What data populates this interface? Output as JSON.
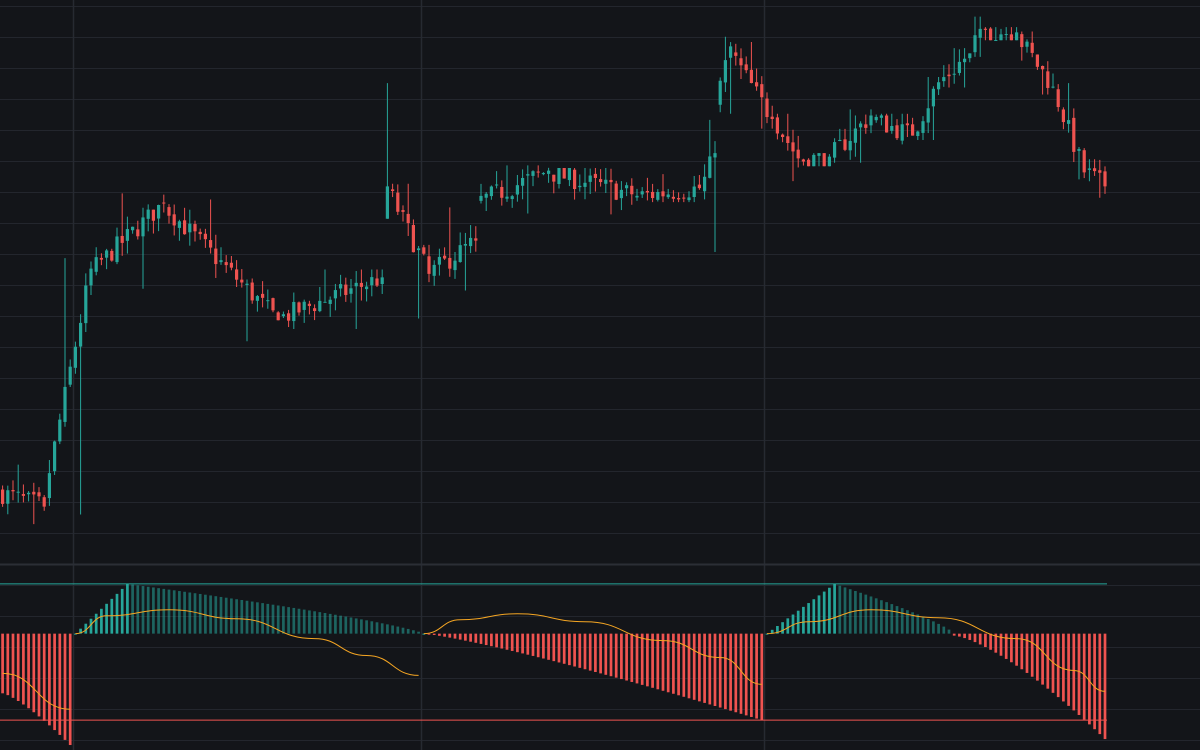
{
  "theme": {
    "background": "#131519",
    "grid": "#23262d",
    "pane_separator": "#2b2e35",
    "period_divider": "#262a31",
    "up_color": "#26a69a",
    "down_color": "#ef5350",
    "signal_color": "#f5a623"
  },
  "chart_data": [
    {
      "type": "candlestick",
      "pane": "price",
      "axes_labels_visible": false,
      "grid": true,
      "y_range": [
        26,
        90
      ],
      "segments": [
        {
          "start": 0,
          "end": 9,
          "open": 33.8,
          "close": 32.1,
          "high": 36.9,
          "low": 30.1
        },
        {
          "start": 9,
          "end": 18,
          "open": 33.2,
          "close": 59.3,
          "high": 60.5,
          "low": 31.2
        },
        {
          "start": 18,
          "end": 32,
          "open": 59.0,
          "close": 66.8,
          "high": 67.9,
          "low": 57.0
        },
        {
          "start": 32,
          "end": 54,
          "open": 66.5,
          "close": 53.4,
          "high": 67.2,
          "low": 51.0
        },
        {
          "start": 54,
          "end": 74,
          "open": 53.6,
          "close": 58.3,
          "high": 59.2,
          "low": 52.4
        },
        {
          "start": 74,
          "end": 75,
          "open": 59.0,
          "close": 68.7,
          "high": 80.5,
          "low": 65.0
        },
        {
          "start": 75,
          "end": 83,
          "open": 68.5,
          "close": 58.7,
          "high": 69.0,
          "low": 53.6
        },
        {
          "start": 83,
          "end": 92,
          "open": 58.7,
          "close": 62.5,
          "high": 66.3,
          "low": 56.8
        },
        {
          "start": 92,
          "end": 106,
          "open": 66.8,
          "close": 70.5,
          "high": 71.1,
          "low": 65.6
        },
        {
          "start": 106,
          "end": 122,
          "open": 70.3,
          "close": 67.8,
          "high": 70.8,
          "low": 65.5
        },
        {
          "start": 122,
          "end": 135,
          "open": 67.5,
          "close": 68.5,
          "high": 70.1,
          "low": 66.9
        },
        {
          "start": 135,
          "end": 138,
          "open": 68.0,
          "close": 72.5,
          "high": 76.3,
          "low": 61.2
        },
        {
          "start": 138,
          "end": 141,
          "open": 78.0,
          "close": 84.7,
          "high": 85.8,
          "low": 77.0
        },
        {
          "start": 141,
          "end": 149,
          "open": 84.0,
          "close": 76.4,
          "high": 85.2,
          "low": 75.3
        },
        {
          "start": 149,
          "end": 154,
          "open": 76.7,
          "close": 71.9,
          "high": 77.0,
          "low": 69.3
        },
        {
          "start": 154,
          "end": 160,
          "open": 71.7,
          "close": 72.1,
          "high": 72.5,
          "low": 71.0
        },
        {
          "start": 160,
          "end": 168,
          "open": 72.0,
          "close": 76.8,
          "high": 77.5,
          "low": 71.4
        },
        {
          "start": 168,
          "end": 176,
          "open": 76.5,
          "close": 74.5,
          "high": 77.0,
          "low": 73.5
        },
        {
          "start": 176,
          "end": 181,
          "open": 74.7,
          "close": 80.6,
          "high": 81.2,
          "low": 74.0
        },
        {
          "start": 181,
          "end": 187,
          "open": 80.5,
          "close": 83.9,
          "high": 84.5,
          "low": 80.0
        },
        {
          "start": 187,
          "end": 189,
          "open": 84.0,
          "close": 86.7,
          "high": 88.1,
          "low": 83.5
        },
        {
          "start": 189,
          "end": 196,
          "open": 86.5,
          "close": 86.3,
          "high": 86.9,
          "low": 85.4
        },
        {
          "start": 196,
          "end": 203,
          "open": 86.0,
          "close": 80.1,
          "high": 86.4,
          "low": 79.2
        },
        {
          "start": 203,
          "end": 209,
          "open": 80.0,
          "close": 70.3,
          "high": 80.5,
          "low": 69.5
        },
        {
          "start": 209,
          "end": 213,
          "open": 70.5,
          "close": 68.7,
          "high": 71.8,
          "low": 67.4
        }
      ]
    },
    {
      "type": "histogram",
      "pane": "oscillator",
      "axes_labels_visible": false,
      "y_range": [
        -115,
        62
      ],
      "upper_level": 50,
      "lower_level": -87,
      "cycles": [
        {
          "start": 0,
          "end": 14,
          "from": -60,
          "to": -112,
          "curvature": 1.3
        },
        {
          "start": 14,
          "end": 25,
          "from": 0,
          "to": 50,
          "curvature": 1.0,
          "decay_to": 81,
          "decay_curvature": 0.8
        },
        {
          "start": 81,
          "end": 147,
          "from": 0,
          "to": -87,
          "curvature": 1.2
        },
        {
          "start": 147,
          "end": 161,
          "from": 0,
          "to": 50,
          "curvature": 1.0,
          "decay_to": 183,
          "decay_curvature": 0.8
        },
        {
          "start": 183,
          "end": 213,
          "from": -2,
          "to": -106,
          "curvature": 1.4
        }
      ],
      "signal": [
        {
          "x": 0,
          "y": -40
        },
        {
          "x": 13,
          "y": -76
        },
        {
          "x": 14,
          "y": 0
        },
        {
          "x": 20,
          "y": 18
        },
        {
          "x": 32,
          "y": 24
        },
        {
          "x": 45,
          "y": 15
        },
        {
          "x": 60,
          "y": -5
        },
        {
          "x": 70,
          "y": -22
        },
        {
          "x": 80,
          "y": -42
        },
        {
          "x": 81,
          "y": 0
        },
        {
          "x": 88,
          "y": 14
        },
        {
          "x": 99,
          "y": 20
        },
        {
          "x": 112,
          "y": 12
        },
        {
          "x": 127,
          "y": -7
        },
        {
          "x": 138,
          "y": -24
        },
        {
          "x": 146,
          "y": -51
        },
        {
          "x": 147,
          "y": 0
        },
        {
          "x": 155,
          "y": 12
        },
        {
          "x": 167,
          "y": 24
        },
        {
          "x": 180,
          "y": 16
        },
        {
          "x": 195,
          "y": -5
        },
        {
          "x": 206,
          "y": -37
        },
        {
          "x": 212,
          "y": -58
        }
      ]
    }
  ]
}
